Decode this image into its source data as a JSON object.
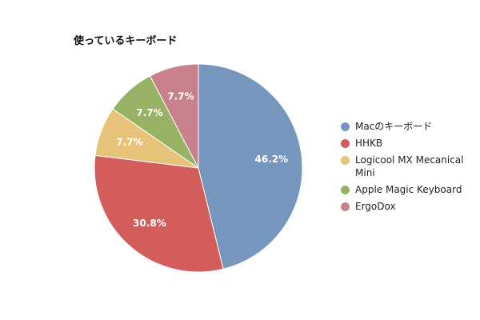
{
  "chart_data": {
    "type": "pie",
    "title": "使っているキーボード",
    "categories": [
      "Macのキーボード",
      "HHKB",
      "Logicool MX Mecanical Mini",
      "Apple Magic Keyboard",
      "ErgoDox"
    ],
    "values": [
      6,
      4,
      1,
      1,
      1
    ],
    "data_labels": [
      "46.2%",
      "30.8%",
      "7.7%",
      "7.7%",
      "7.7%"
    ],
    "colors": [
      "#7596bd",
      "#d25d5b",
      "#e7c37a",
      "#97b264",
      "#c8808a"
    ],
    "legend_position": "right"
  }
}
